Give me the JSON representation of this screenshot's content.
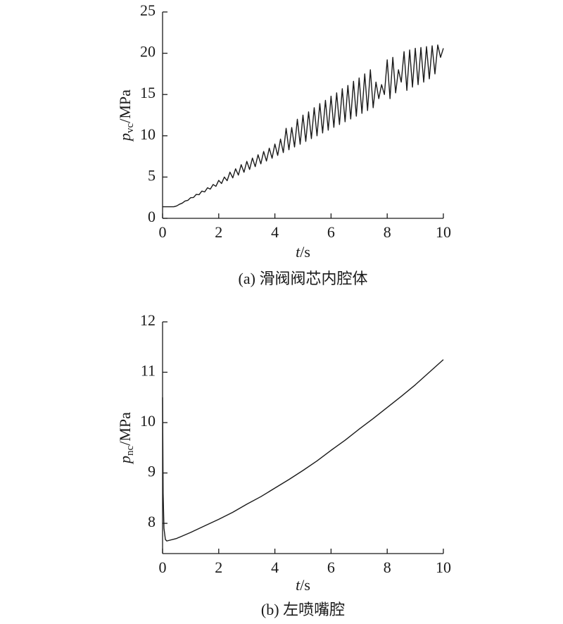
{
  "chart_data": [
    {
      "type": "line",
      "color": "#1a1a1a",
      "xlabel": {
        "symbol": "t",
        "unit": "/s"
      },
      "ylabel": {
        "symbol": "p",
        "subscript": "vc",
        "unit": "/MPa"
      },
      "caption": "(a) 滑阀阀芯内腔体",
      "xlim": [
        0,
        10
      ],
      "xticks": [
        0,
        2,
        4,
        6,
        8,
        10
      ],
      "ylim": [
        0,
        25
      ],
      "yticks": [
        0,
        5,
        10,
        15,
        20,
        25
      ],
      "x": [
        0,
        0.4,
        0.5,
        0.6,
        0.7,
        0.8,
        0.9,
        1.0,
        1.1,
        1.2,
        1.3,
        1.4,
        1.5,
        1.6,
        1.7,
        1.8,
        1.9,
        2.0,
        2.1,
        2.2,
        2.3,
        2.4,
        2.5,
        2.6,
        2.7,
        2.8,
        2.9,
        3.0,
        3.1,
        3.2,
        3.3,
        3.4,
        3.5,
        3.6,
        3.7,
        3.8,
        3.9,
        4.0,
        4.1,
        4.2,
        4.3,
        4.4,
        4.5,
        4.6,
        4.7,
        4.8,
        4.9,
        5.0,
        5.1,
        5.2,
        5.3,
        5.4,
        5.5,
        5.6,
        5.7,
        5.8,
        5.9,
        6.0,
        6.1,
        6.2,
        6.3,
        6.4,
        6.5,
        6.6,
        6.7,
        6.8,
        6.9,
        7.0,
        7.1,
        7.2,
        7.3,
        7.4,
        7.5,
        7.6,
        7.7,
        7.8,
        7.9,
        8.0,
        8.1,
        8.2,
        8.3,
        8.4,
        8.5,
        8.6,
        8.7,
        8.8,
        8.9,
        9.0,
        9.1,
        9.2,
        9.3,
        9.4,
        9.5,
        9.6,
        9.7,
        9.8,
        9.9,
        10.0
      ],
      "values": [
        1.4,
        1.4,
        1.5,
        1.7,
        1.84,
        2.1,
        2.18,
        2.5,
        2.52,
        2.9,
        2.86,
        3.3,
        3.2,
        3.7,
        3.54,
        4.1,
        3.88,
        4.6,
        4.22,
        5.0,
        4.56,
        5.6,
        4.9,
        6.0,
        5.24,
        6.5,
        5.58,
        6.9,
        5.92,
        7.3,
        6.26,
        7.7,
        6.6,
        8.1,
        6.94,
        8.5,
        7.28,
        9.0,
        7.62,
        9.6,
        7.96,
        10.9,
        8.3,
        11.0,
        8.64,
        12.0,
        8.98,
        12.5,
        9.32,
        12.9,
        9.66,
        13.4,
        10.0,
        13.9,
        10.34,
        14.3,
        10.68,
        14.8,
        11.02,
        15.2,
        11.36,
        15.7,
        11.7,
        16.1,
        12.04,
        16.6,
        12.38,
        17.0,
        12.72,
        17.5,
        13.06,
        18.0,
        13.4,
        16.5,
        14.5,
        16.2,
        15.0,
        19.2,
        14.5,
        19.5,
        15.2,
        18.0,
        16.5,
        20.2,
        15.5,
        20.4,
        15.9,
        20.6,
        16.2,
        20.7,
        16.5,
        20.8,
        16.9,
        20.9,
        17.5,
        21.0,
        19.5,
        20.6
      ]
    },
    {
      "type": "line",
      "color": "#1a1a1a",
      "xlabel": {
        "symbol": "t",
        "unit": "/s"
      },
      "ylabel": {
        "symbol": "p",
        "subscript": "nc",
        "unit": "/MPa"
      },
      "caption": "(b) 左喷嘴腔",
      "xlim": [
        0,
        10
      ],
      "xticks": [
        0,
        2,
        4,
        6,
        8,
        10
      ],
      "ylim": [
        7.4,
        12
      ],
      "yticks": [
        8,
        9,
        10,
        11,
        12
      ],
      "x": [
        0,
        0.02,
        0.05,
        0.1,
        0.15,
        0.5,
        1,
        1.5,
        2,
        2.5,
        3,
        3.5,
        4,
        4.5,
        5,
        5.5,
        6,
        6.5,
        7,
        7.5,
        8,
        8.5,
        9,
        9.5,
        10
      ],
      "values": [
        10.5,
        8.6,
        7.9,
        7.68,
        7.65,
        7.7,
        7.82,
        7.95,
        8.08,
        8.22,
        8.38,
        8.53,
        8.7,
        8.87,
        9.05,
        9.24,
        9.45,
        9.65,
        9.87,
        10.08,
        10.3,
        10.52,
        10.75,
        11.0,
        11.25
      ]
    }
  ]
}
